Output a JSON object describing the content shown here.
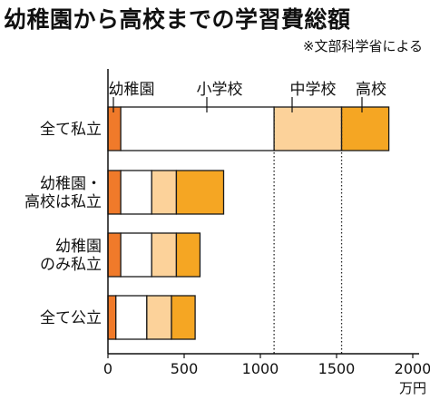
{
  "chart_data": {
    "type": "bar",
    "stacked": true,
    "orientation": "horizontal",
    "title": "幼稚園から高校までの学習費総額",
    "source": "※文部科学省による",
    "unit": "万円",
    "xlim": [
      0,
      2000
    ],
    "x_ticks": [
      "0",
      "500",
      "1000",
      "1500",
      "2000"
    ],
    "grid": false,
    "categories": [
      [
        "全て私立"
      ],
      [
        "幼稚園・",
        "高校は私立"
      ],
      [
        "幼稚園",
        "のみ私立"
      ],
      [
        "全て公立"
      ]
    ],
    "segment_labels": [
      "幼稚園",
      "小学校",
      "中学校",
      "高校"
    ],
    "series": [
      {
        "name": "幼稚園",
        "color": "#f07a2a",
        "values": [
          84,
          84,
          84,
          52
        ]
      },
      {
        "name": "小学校",
        "color": "#ffffff",
        "values": [
          1006,
          203,
          203,
          203
        ]
      },
      {
        "name": "中学校",
        "color": "#fcd29a",
        "values": [
          443,
          162,
          162,
          162
        ]
      },
      {
        "name": "高校",
        "color": "#f5a623",
        "values": [
          310,
          310,
          155,
          155
        ]
      }
    ]
  }
}
